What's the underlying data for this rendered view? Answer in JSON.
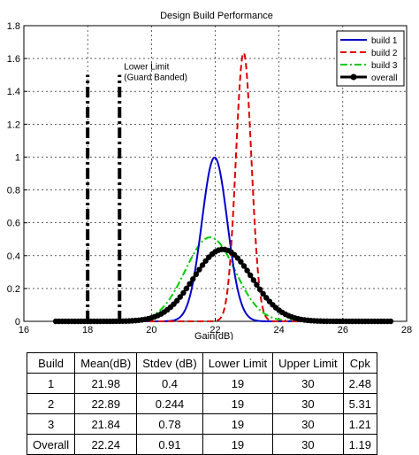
{
  "chart_data": {
    "type": "line",
    "title": "Design Build Performance",
    "xlabel": "Gain(dB)",
    "ylabel": "",
    "xlim": [
      16,
      28
    ],
    "ylim": [
      0,
      1.8
    ],
    "x_ticks": [
      16,
      18,
      20,
      22,
      24,
      26,
      28
    ],
    "y_ticks": [
      0,
      0.2,
      0.4,
      0.6,
      0.8,
      1,
      1.2,
      1.4,
      1.6,
      1.8
    ],
    "x_tick_labels": [
      "16",
      "18",
      "20",
      "22",
      "24",
      "26",
      "28"
    ],
    "y_tick_labels": [
      "0",
      "0.2",
      "0.4",
      "0.6",
      "0.8",
      "1",
      "1.2",
      "1.4",
      "1.6",
      "1.8"
    ],
    "grid": true,
    "legend_position": "top-right",
    "series": [
      {
        "name": "build 1",
        "mean": 21.98,
        "stdev": 0.4,
        "color": "#0000cc",
        "style": "solid"
      },
      {
        "name": "build 2",
        "mean": 22.89,
        "stdev": 0.244,
        "color": "#dd0000",
        "style": "dashed"
      },
      {
        "name": "build 3",
        "mean": 21.84,
        "stdev": 0.78,
        "color": "#00cc00",
        "style": "dashdot"
      },
      {
        "name": "overall",
        "mean": 22.24,
        "stdev": 0.91,
        "color": "#000000",
        "style": "solid-marker"
      }
    ],
    "limit_lines": [
      {
        "x": 18,
        "y_top": 1.5,
        "label": ""
      },
      {
        "x": 19,
        "y_top": 1.5,
        "label": "Lower Limit",
        "label2": "(Guard Banded)"
      }
    ]
  },
  "table": {
    "headers": [
      "Build",
      "Mean(dB)",
      "Stdev (dB)",
      "Lower Limit",
      "Upper Limit",
      "Cpk"
    ],
    "rows": [
      [
        "1",
        "21.98",
        "0.4",
        "19",
        "30",
        "2.48"
      ],
      [
        "2",
        "22.89",
        "0.244",
        "19",
        "30",
        "5.31"
      ],
      [
        "3",
        "21.84",
        "0.78",
        "19",
        "30",
        "1.21"
      ],
      [
        "Overall",
        "22.24",
        "0.91",
        "19",
        "30",
        "1.19"
      ]
    ]
  }
}
